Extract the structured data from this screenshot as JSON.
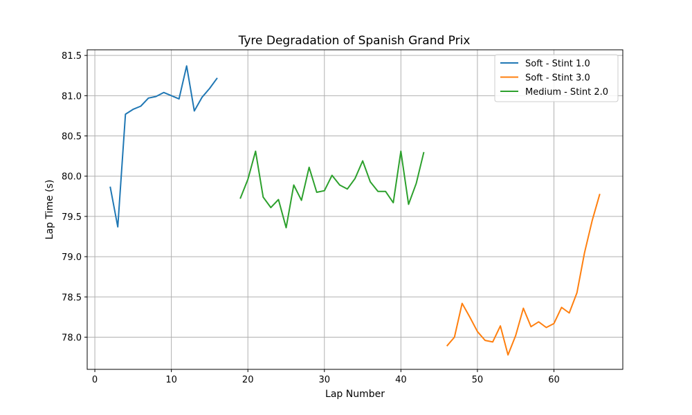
{
  "chart_data": {
    "type": "line",
    "title": "Tyre Degradation of Spanish Grand Prix",
    "xlabel": "Lap Number",
    "ylabel": "Lap Time (s)",
    "xlim": [
      -1,
      69
    ],
    "ylim": [
      77.6,
      81.57
    ],
    "xticks": [
      0,
      10,
      20,
      30,
      40,
      50,
      60
    ],
    "yticks": [
      78.0,
      78.5,
      79.0,
      79.5,
      80.0,
      80.5,
      81.0,
      81.5
    ],
    "grid": true,
    "legend_position": "top-right",
    "series": [
      {
        "name": "Soft - Stint 1.0",
        "color": "#1f77b4",
        "x": [
          2,
          3,
          4,
          5,
          6,
          7,
          8,
          9,
          10,
          11,
          12,
          13,
          14,
          15,
          16
        ],
        "y": [
          79.87,
          79.37,
          80.77,
          80.83,
          80.87,
          80.97,
          80.99,
          81.04,
          81.0,
          80.96,
          81.37,
          80.81,
          80.98,
          81.09,
          81.22
        ]
      },
      {
        "name": "Soft - Stint 3.0",
        "color": "#ff7f0e",
        "x": [
          46,
          47,
          48,
          49,
          50,
          51,
          52,
          53,
          54,
          55,
          56,
          57,
          58,
          59,
          60,
          61,
          62,
          63,
          64,
          65,
          66
        ],
        "y": [
          77.89,
          78.0,
          78.42,
          78.25,
          78.07,
          77.96,
          77.94,
          78.14,
          77.78,
          78.02,
          78.36,
          78.13,
          78.19,
          78.12,
          78.17,
          78.37,
          78.3,
          78.55,
          79.05,
          79.45,
          79.78
        ]
      },
      {
        "name": "Medium - Stint 2.0",
        "color": "#2ca02c",
        "x": [
          19,
          20,
          21,
          22,
          23,
          24,
          25,
          26,
          27,
          28,
          29,
          30,
          31,
          32,
          33,
          34,
          35,
          36,
          37,
          38,
          39,
          40,
          41,
          42,
          43
        ],
        "y": [
          79.72,
          79.96,
          80.31,
          79.74,
          79.61,
          79.71,
          79.36,
          79.89,
          79.7,
          80.11,
          79.8,
          79.82,
          80.01,
          79.89,
          79.84,
          79.97,
          80.19,
          79.93,
          79.81,
          79.81,
          79.67,
          80.31,
          79.65,
          79.91,
          80.3
        ]
      }
    ]
  }
}
